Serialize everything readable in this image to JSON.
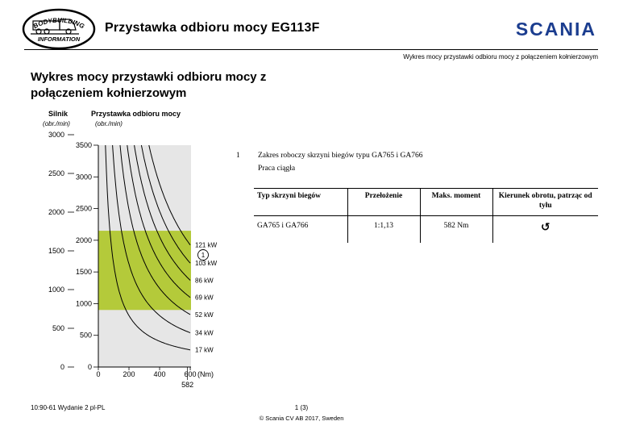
{
  "header": {
    "logo": {
      "top": "BODYBUILDING",
      "bottom": "INFORMATION"
    },
    "title": "Przystawka odbioru mocy EG113F",
    "brand": "SCANIA",
    "subtitle": "Wykres mocy przystawki odbioru mocy z połączeniem kołnierzowym"
  },
  "heading": "Wykres mocy przystawki odbioru mocy z połączeniem kołnierzowym",
  "legend": {
    "items": [
      {
        "marker": "1",
        "text": "Zakres roboczy skrzyni biegów typu GA765 i GA766"
      },
      {
        "marker": "swatch",
        "text": "Praca ciągła"
      }
    ]
  },
  "table": {
    "headers": [
      "Typ skrzyni biegów",
      "Przełożenie",
      "Maks. moment",
      "Kierunek obrotu, patrząc od tyłu"
    ],
    "rows": [
      [
        "GA765 i GA766",
        "1:1,13",
        "582 Nm",
        "↺"
      ]
    ]
  },
  "chart_data": {
    "type": "line",
    "y_left_outer": {
      "title": "Silnik",
      "unit": "(obr./min)",
      "ticks": [
        0,
        500,
        1000,
        1500,
        2000,
        2500,
        3000
      ],
      "max": 3000
    },
    "y_left_inner": {
      "title": "Przystawka odbioru mocy",
      "unit": "(obr./min)",
      "ticks": [
        0,
        500,
        1000,
        1500,
        2000,
        2500,
        3000,
        3500
      ],
      "max": 3500
    },
    "x_axis": {
      "unit": "(Nm)",
      "ticks": [
        0,
        200,
        400,
        600
      ],
      "max": 605,
      "marker": 582
    },
    "power_curves": [
      {
        "kw": 121,
        "label": "121 kW"
      },
      {
        "kw": 103,
        "label": "103 kW"
      },
      {
        "kw": 86,
        "label": "86 kW"
      },
      {
        "kw": 69,
        "label": "69 kW"
      },
      {
        "kw": 52,
        "label": "52 kW"
      },
      {
        "kw": 34,
        "label": "34 kW"
      },
      {
        "kw": 17,
        "label": "17 kW"
      }
    ],
    "continuous_band_rpm": [
      900,
      2150
    ],
    "callout": {
      "label": "1"
    },
    "colors": {
      "band": "#b4ca3a",
      "plot_bg": "#e6e6e6"
    }
  },
  "footer": {
    "left": "10:90-61 Wydanie 2  pl-PL",
    "page": "1 (3)",
    "copyright": "© Scania CV AB 2017, Sweden"
  }
}
